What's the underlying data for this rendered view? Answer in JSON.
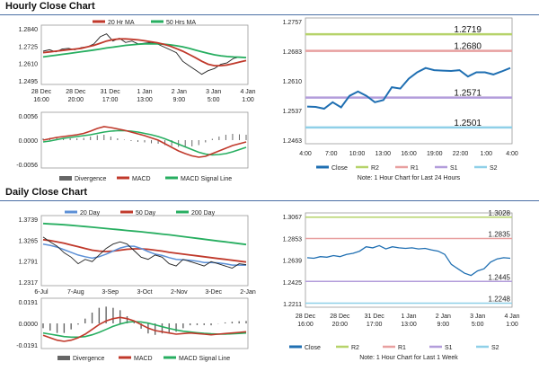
{
  "section_titles": {
    "hourly": "Hourly Close Chart",
    "daily": "Daily Close Chart"
  },
  "colors": {
    "ma_short": "#c0392b",
    "ma_long": "#27ae60",
    "price": "#222222",
    "close_line": "#1f6fb2",
    "r2": "#b6d36a",
    "r1": "#e8a0a0",
    "s1": "#b39ddb",
    "s2": "#8fd0e8",
    "divergence": "#666666",
    "day20": "#5b8fd6",
    "day50": "#c0392b",
    "day200": "#27ae60"
  },
  "chart_data": [
    {
      "id": "hourly_price",
      "type": "line",
      "legend": [
        "20 Hr MA",
        "50 Hrs MA"
      ],
      "y_ticks": [
        "1.2840",
        "1.2725",
        "1.2610",
        "1.2495"
      ],
      "ylim": [
        1.246,
        1.287
      ],
      "x_ticks": [
        [
          "28 Dec",
          "16:00"
        ],
        [
          "28 Dec",
          "20:00"
        ],
        [
          "31 Dec",
          "17:00"
        ],
        [
          "1 Jan",
          "13:00"
        ],
        [
          "2 Jan",
          "9:00"
        ],
        [
          "3 Jan",
          "5:00"
        ],
        [
          "4 Jan",
          "1:00"
        ]
      ],
      "series": [
        {
          "name": "Price",
          "values": [
            1.269,
            1.27,
            1.2685,
            1.2705,
            1.271,
            1.27,
            1.2715,
            1.272,
            1.274,
            1.279,
            1.281,
            1.276,
            1.278,
            1.275,
            1.276,
            1.274,
            1.2745,
            1.275,
            1.274,
            1.272,
            1.27,
            1.268,
            1.262,
            1.259,
            1.256,
            1.253,
            1.2555,
            1.257,
            1.26,
            1.261,
            1.264,
            1.265,
            1.2645
          ]
        },
        {
          "name": "20 Hr MA",
          "values": [
            1.268,
            1.2685,
            1.269,
            1.2695,
            1.27,
            1.2705,
            1.271,
            1.272,
            1.273,
            1.2745,
            1.276,
            1.277,
            1.2775,
            1.2775,
            1.2772,
            1.2768,
            1.2762,
            1.2755,
            1.2748,
            1.2738,
            1.2725,
            1.2708,
            1.269,
            1.2668,
            1.2645,
            1.262,
            1.26,
            1.259,
            1.259,
            1.2595,
            1.2605,
            1.2615,
            1.2625
          ]
        },
        {
          "name": "50 Hrs MA",
          "values": [
            1.265,
            1.2656,
            1.2662,
            1.2668,
            1.2674,
            1.268,
            1.2686,
            1.2692,
            1.2698,
            1.2705,
            1.2712,
            1.2718,
            1.2724,
            1.273,
            1.2734,
            1.2738,
            1.274,
            1.2741,
            1.274,
            1.2738,
            1.2734,
            1.2728,
            1.272,
            1.271,
            1.2698,
            1.2686,
            1.2675,
            1.2665,
            1.2658,
            1.2653,
            1.265,
            1.2648,
            1.2646
          ]
        }
      ]
    },
    {
      "id": "hourly_macd",
      "type": "line",
      "legend": [
        "Divergence",
        "MACD",
        "MACD Signal Line"
      ],
      "y_ticks": [
        "0.0056",
        "0.0000",
        "-0.0056"
      ],
      "ylim": [
        -0.0062,
        0.0062
      ],
      "series": [
        {
          "name": "MACD",
          "values": [
            0.0,
            0.0003,
            0.0006,
            0.0008,
            0.001,
            0.0012,
            0.0015,
            0.002,
            0.0026,
            0.003,
            0.0028,
            0.0025,
            0.0022,
            0.0018,
            0.0014,
            0.001,
            0.0005,
            0.0,
            -0.0008,
            -0.0016,
            -0.0024,
            -0.003,
            -0.0035,
            -0.0038,
            -0.0036,
            -0.003,
            -0.0024,
            -0.0018,
            -0.0012,
            -0.0008,
            -0.0004
          ]
        },
        {
          "name": "MACD Signal Line",
          "values": [
            -0.0004,
            -0.0002,
            0.0001,
            0.0004,
            0.0006,
            0.0008,
            0.001,
            0.0012,
            0.0015,
            0.0018,
            0.002,
            0.0021,
            0.0021,
            0.002,
            0.0018,
            0.0015,
            0.0012,
            0.0008,
            0.0003,
            -0.0003,
            -0.0009,
            -0.0015,
            -0.0021,
            -0.0027,
            -0.0031,
            -0.0033,
            -0.0032,
            -0.003,
            -0.0026,
            -0.0021,
            -0.0016
          ]
        }
      ]
    },
    {
      "id": "hourly_close",
      "type": "line",
      "title_note": "Note: 1 Hour Chart for Last 24 Hours",
      "y_ticks": [
        "1.2757",
        "1.2683",
        "1.2610",
        "1.2537",
        "1.2463"
      ],
      "ylim": [
        1.2463,
        1.2757
      ],
      "x_ticks": [
        "4:00",
        "7:00",
        "10:00",
        "13:00",
        "16:00",
        "19:00",
        "22:00",
        "1:00",
        "4:00"
      ],
      "levels": [
        {
          "name": "R2",
          "label": "1.2719",
          "value": 1.2719
        },
        {
          "name": "R1",
          "label": "1.2680",
          "value": 1.268
        },
        {
          "name": "S1",
          "label": "1.2571",
          "value": 1.2571
        },
        {
          "name": "S2",
          "label": "1.2501",
          "value": 1.2501
        }
      ],
      "series": [
        {
          "name": "Close",
          "values": [
            1.255,
            1.2549,
            1.2545,
            1.256,
            1.2548,
            1.2575,
            1.2585,
            1.2575,
            1.256,
            1.2565,
            1.2595,
            1.2592,
            1.2615,
            1.263,
            1.264,
            1.2635,
            1.2634,
            1.2633,
            1.2635,
            1.262,
            1.263,
            1.263,
            1.2625,
            1.2632,
            1.264
          ]
        }
      ],
      "legend": [
        "Close",
        "R2",
        "R1",
        "S1",
        "S2"
      ]
    },
    {
      "id": "daily_price",
      "type": "line",
      "legend": [
        "20 Day",
        "50 Day",
        "200 Day"
      ],
      "y_ticks": [
        "1.3739",
        "1.3265",
        "1.2791",
        "1.2317"
      ],
      "ylim": [
        1.22,
        1.38
      ],
      "x_ticks": [
        "6-Jul",
        "7-Aug",
        "3-Sep",
        "3-Oct",
        "2-Nov",
        "3-Dec",
        "2-Jan"
      ],
      "series": [
        {
          "name": "Price",
          "values": [
            1.331,
            1.32,
            1.31,
            1.295,
            1.285,
            1.27,
            1.28,
            1.275,
            1.29,
            1.305,
            1.315,
            1.32,
            1.315,
            1.3,
            1.285,
            1.28,
            1.29,
            1.285,
            1.27,
            1.265,
            1.28,
            1.275,
            1.27,
            1.265,
            1.275,
            1.27,
            1.265,
            1.26,
            1.27,
            1.268
          ]
        },
        {
          "name": "20 Day",
          "values": [
            1.315,
            1.312,
            1.308,
            1.302,
            1.296,
            1.29,
            1.286,
            1.283,
            1.286,
            1.292,
            1.299,
            1.306,
            1.31,
            1.31,
            1.305,
            1.298,
            1.292,
            1.289,
            1.284,
            1.28,
            1.279,
            1.278,
            1.276,
            1.273,
            1.273,
            1.272,
            1.27,
            1.267,
            1.267,
            1.2665
          ]
        },
        {
          "name": "50 Day",
          "values": [
            1.325,
            1.323,
            1.32,
            1.317,
            1.313,
            1.309,
            1.305,
            1.301,
            1.299,
            1.298,
            1.299,
            1.301,
            1.303,
            1.304,
            1.304,
            1.303,
            1.301,
            1.299,
            1.296,
            1.294,
            1.292,
            1.29,
            1.288,
            1.286,
            1.284,
            1.282,
            1.28,
            1.278,
            1.276,
            1.274
          ]
        },
        {
          "name": "200 Day",
          "values": [
            1.362,
            1.361,
            1.36,
            1.359,
            1.3578,
            1.3565,
            1.355,
            1.3535,
            1.352,
            1.3505,
            1.349,
            1.3475,
            1.346,
            1.3445,
            1.343,
            1.3412,
            1.3395,
            1.3378,
            1.336,
            1.334,
            1.332,
            1.33,
            1.328,
            1.326,
            1.324,
            1.322,
            1.32,
            1.318,
            1.316,
            1.314
          ]
        }
      ]
    },
    {
      "id": "daily_macd",
      "type": "line",
      "legend": [
        "Divergence",
        "MACD",
        "MACD Signal Line"
      ],
      "y_ticks": [
        "0.0191",
        "0.0000",
        "-0.0191"
      ],
      "ylim": [
        -0.021,
        0.021
      ],
      "series": [
        {
          "name": "MACD",
          "values": [
            -0.01,
            -0.012,
            -0.014,
            -0.015,
            -0.014,
            -0.012,
            -0.009,
            -0.005,
            -0.001,
            0.002,
            0.004,
            0.005,
            0.004,
            0.002,
            -0.001,
            -0.004,
            -0.006,
            -0.007,
            -0.008,
            -0.009,
            -0.0085,
            -0.008,
            -0.0085,
            -0.009,
            -0.0095,
            -0.009,
            -0.0085,
            -0.008,
            -0.0075,
            -0.007
          ]
        },
        {
          "name": "MACD Signal Line",
          "values": [
            -0.008,
            -0.009,
            -0.01,
            -0.011,
            -0.0115,
            -0.0115,
            -0.011,
            -0.0095,
            -0.0075,
            -0.005,
            -0.0025,
            -0.0005,
            0.001,
            0.0015,
            0.0012,
            0.0002,
            -0.0012,
            -0.0028,
            -0.0042,
            -0.0055,
            -0.0065,
            -0.0072,
            -0.0078,
            -0.0083,
            -0.0087,
            -0.0089,
            -0.0089,
            -0.0087,
            -0.0084,
            -0.008
          ]
        }
      ]
    },
    {
      "id": "weekly_close",
      "type": "line",
      "title_note": "Note: 1 Hour Chart for Last 1 Week",
      "y_ticks": [
        "1.3067",
        "1.2853",
        "1.2639",
        "1.2425",
        "1.2211"
      ],
      "ylim": [
        1.2211,
        1.3067
      ],
      "x_ticks": [
        [
          "28 Dec",
          "16:00"
        ],
        [
          "28 Dec",
          "20:00"
        ],
        [
          "31 Dec",
          "17:00"
        ],
        [
          "1 Jan",
          "13:00"
        ],
        [
          "2 Jan",
          "9:00"
        ],
        [
          "3 Jan",
          "5:00"
        ],
        [
          "4 Jan",
          "1:00"
        ]
      ],
      "levels": [
        {
          "name": "R2",
          "label": "1.3028",
          "value": 1.3028
        },
        {
          "name": "R1",
          "label": "1.2835",
          "value": 1.2835
        },
        {
          "name": "S1",
          "label": "1.2445",
          "value": 1.2445
        },
        {
          "name": "S2",
          "label": "1.2248",
          "value": 1.2248
        }
      ],
      "series": [
        {
          "name": "Close",
          "values": [
            1.266,
            1.2655,
            1.267,
            1.2665,
            1.268,
            1.267,
            1.269,
            1.27,
            1.272,
            1.276,
            1.275,
            1.277,
            1.274,
            1.276,
            1.275,
            1.2745,
            1.275,
            1.274,
            1.2745,
            1.273,
            1.272,
            1.269,
            1.26,
            1.256,
            1.252,
            1.25,
            1.254,
            1.256,
            1.262,
            1.265,
            1.266,
            1.2655
          ]
        }
      ],
      "legend": [
        "Close",
        "R2",
        "R1",
        "S1",
        "S2"
      ]
    }
  ]
}
